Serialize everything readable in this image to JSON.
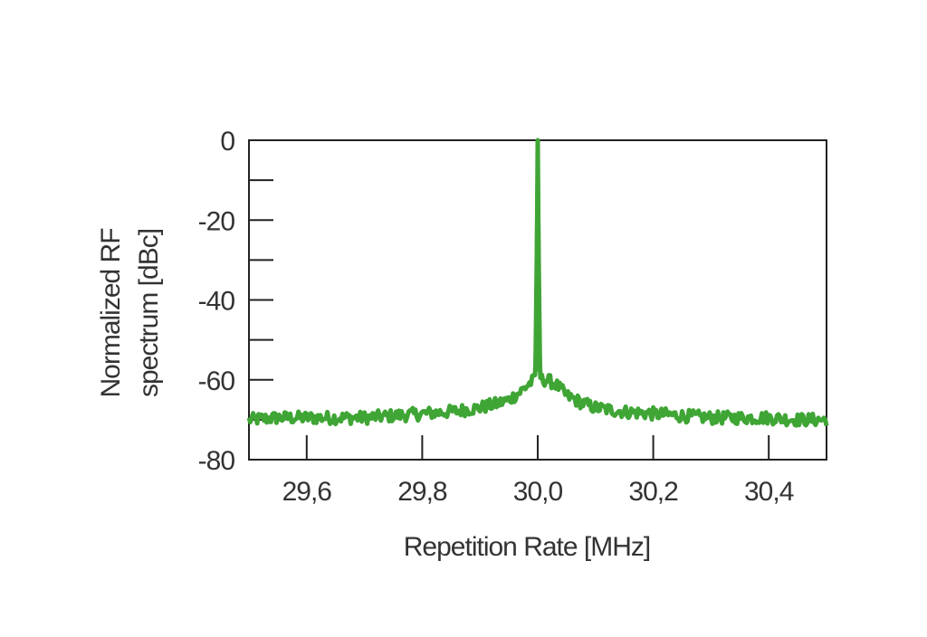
{
  "chart_data": {
    "type": "line",
    "title": "",
    "xlabel": "Repetition Rate [MHz]",
    "ylabel": [
      "Normalized RF",
      "spectrum [dBc]"
    ],
    "xlim": [
      29.5,
      30.5
    ],
    "ylim": [
      -80,
      0
    ],
    "x_ticks": [
      29.6,
      29.8,
      30.0,
      30.2,
      30.4
    ],
    "x_tick_labels": [
      "29,6",
      "29,8",
      "30,0",
      "30,2",
      "30,4"
    ],
    "y_ticks": [
      0,
      -20,
      -40,
      -60,
      -80
    ],
    "y_tick_labels": [
      "0",
      "-20",
      "-40",
      "-60",
      "-80"
    ],
    "grid": false,
    "legend": "none",
    "series": [
      {
        "color": "#3fa535",
        "points": [
          [
            29.5,
            -70
          ],
          [
            29.55,
            -69.5
          ],
          [
            29.6,
            -69.5
          ],
          [
            29.65,
            -69.5
          ],
          [
            29.7,
            -69.5
          ],
          [
            29.75,
            -69
          ],
          [
            29.8,
            -68.5
          ],
          [
            29.85,
            -68
          ],
          [
            29.9,
            -67
          ],
          [
            29.93,
            -66
          ],
          [
            29.95,
            -65
          ],
          [
            29.97,
            -63
          ],
          [
            29.985,
            -61
          ],
          [
            29.995,
            -60
          ],
          [
            29.998,
            -50
          ],
          [
            30.0,
            0
          ],
          [
            30.002,
            -50
          ],
          [
            30.005,
            -60
          ],
          [
            30.015,
            -60
          ],
          [
            30.03,
            -61
          ],
          [
            30.05,
            -64
          ],
          [
            30.08,
            -66
          ],
          [
            30.1,
            -67
          ],
          [
            30.15,
            -68
          ],
          [
            30.2,
            -68.5
          ],
          [
            30.25,
            -69
          ],
          [
            30.3,
            -69.5
          ],
          [
            30.35,
            -69.5
          ],
          [
            30.4,
            -69.5
          ],
          [
            30.45,
            -70
          ],
          [
            30.5,
            -70
          ]
        ]
      }
    ]
  }
}
